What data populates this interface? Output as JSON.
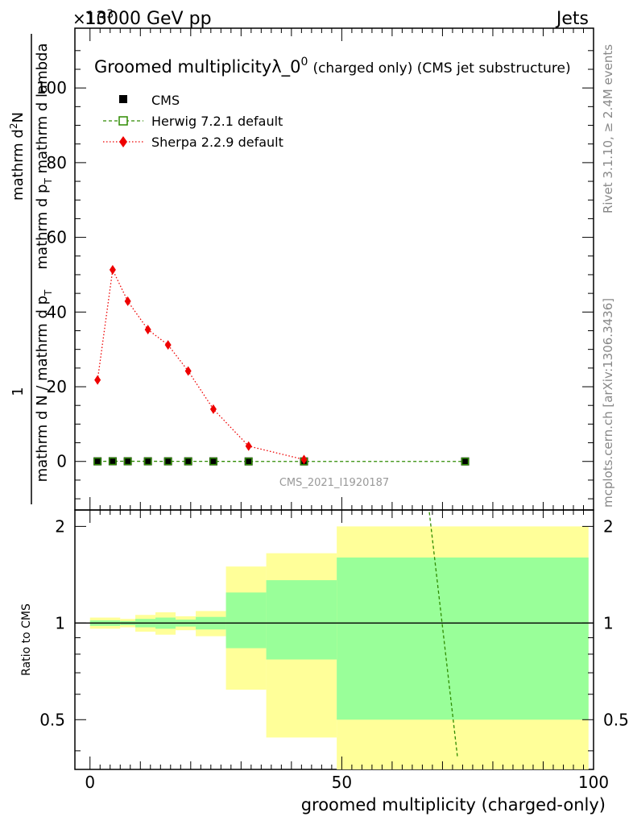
{
  "header": {
    "exponent_label": "×10",
    "exponent_power": "3",
    "energy_label": "13000 GeV pp",
    "process_label": "Jets"
  },
  "title": {
    "main": "Groomed multiplicityλ_0",
    "superscript": "0",
    "suffix": "(charged only) (CMS jet substructure)"
  },
  "side_labels": {
    "rivet": "Rivet 3.1.10, ≥ 2.4M events",
    "mcplots": "mcplots.cern.ch [arXiv:1306.3436]"
  },
  "watermark": "CMS_2021_I1920187",
  "colors": {
    "cms": "#000000",
    "herwig": "#2e8b00",
    "sherpa": "#ee0000",
    "band_inner": "#99ff99",
    "band_outer": "#ffff99"
  },
  "chart_data": [
    {
      "type": "line",
      "panel": "main",
      "ylabel_fraction_num": "1",
      "ylabel_fraction_den": "mathrm d N / mathrm d p_T mathrm d lambda",
      "ylabel_fraction_den_text": "mathrm d N / mathrm d p",
      "ylabel_fraction_den_sub": "T",
      "ylabel_num2": "mathrm d",
      "ylabel_num2_sup": "2",
      "ylabel_num2_rest": "N",
      "ylabel_den2_text": "mathrm d p",
      "ylabel_den2_sub": "T",
      "ylabel_den2_rest": " mathrm d lambda",
      "ylim": [
        -13,
        116
      ],
      "xlim": [
        -3,
        100
      ],
      "y_ticks": [
        "0",
        "20",
        "40",
        "60",
        "80",
        "100"
      ],
      "legend_position": "top-left",
      "series": [
        {
          "name": "CMS",
          "marker": "filled-square",
          "x": [
            1.5,
            4.5,
            7.5,
            11.5,
            15.5,
            19.5,
            24.5,
            31.5,
            42.5,
            74.5
          ],
          "y": [
            0.02,
            0.05,
            0.04,
            0.035,
            0.03,
            0.024,
            0.014,
            0.004,
            0.0005,
            0.0
          ]
        },
        {
          "name": "Herwig 7.2.1 default",
          "marker": "open-square",
          "line": "dashed",
          "x": [
            1.5,
            4.5,
            7.5,
            11.5,
            15.5,
            19.5,
            24.5,
            31.5,
            42.5,
            74.5
          ],
          "y": [
            0.02,
            0.05,
            0.04,
            0.035,
            0.03,
            0.024,
            0.014,
            0.004,
            0.0005,
            0.0
          ]
        },
        {
          "name": "Sherpa 2.2.9 default",
          "marker": "diamond",
          "line": "dotted",
          "x": [
            1.5,
            4.5,
            7.5,
            11.5,
            15.5,
            19.5,
            24.5,
            31.5,
            42.5
          ],
          "y": [
            21.8,
            51.3,
            42.9,
            35.3,
            31.2,
            24.2,
            14.0,
            4.1,
            0.5
          ]
        }
      ]
    },
    {
      "type": "area",
      "panel": "ratio",
      "ylabel": "Ratio to CMS",
      "xlabel": "groomed multiplicity (charged-only)",
      "xlim": [
        -3,
        100
      ],
      "ylim": [
        0.35,
        2.25
      ],
      "x_ticks": [
        "0",
        "50",
        "100"
      ],
      "y_ticks": [
        "0.5",
        "1",
        "2"
      ],
      "reference_line": 1.0,
      "bands": {
        "edges": [
          0,
          3,
          6,
          9,
          13,
          17,
          21,
          27,
          35,
          49,
          99
        ],
        "inner_low": [
          0.98,
          0.98,
          0.985,
          0.97,
          0.96,
          0.975,
          0.955,
          0.835,
          0.77,
          0.5
        ],
        "inner_high": [
          1.02,
          1.02,
          1.015,
          1.03,
          1.04,
          1.025,
          1.045,
          1.245,
          1.36,
          1.6
        ],
        "outer_low": [
          0.96,
          0.96,
          0.97,
          0.94,
          0.92,
          0.95,
          0.91,
          0.62,
          0.44,
          0.26
        ],
        "outer_high": [
          1.04,
          1.04,
          1.03,
          1.06,
          1.08,
          1.05,
          1.09,
          1.5,
          1.65,
          2.0
        ]
      },
      "herwig_ratio_line": {
        "x": [
          67,
          73
        ],
        "y": [
          2.5,
          0.38
        ]
      }
    }
  ]
}
